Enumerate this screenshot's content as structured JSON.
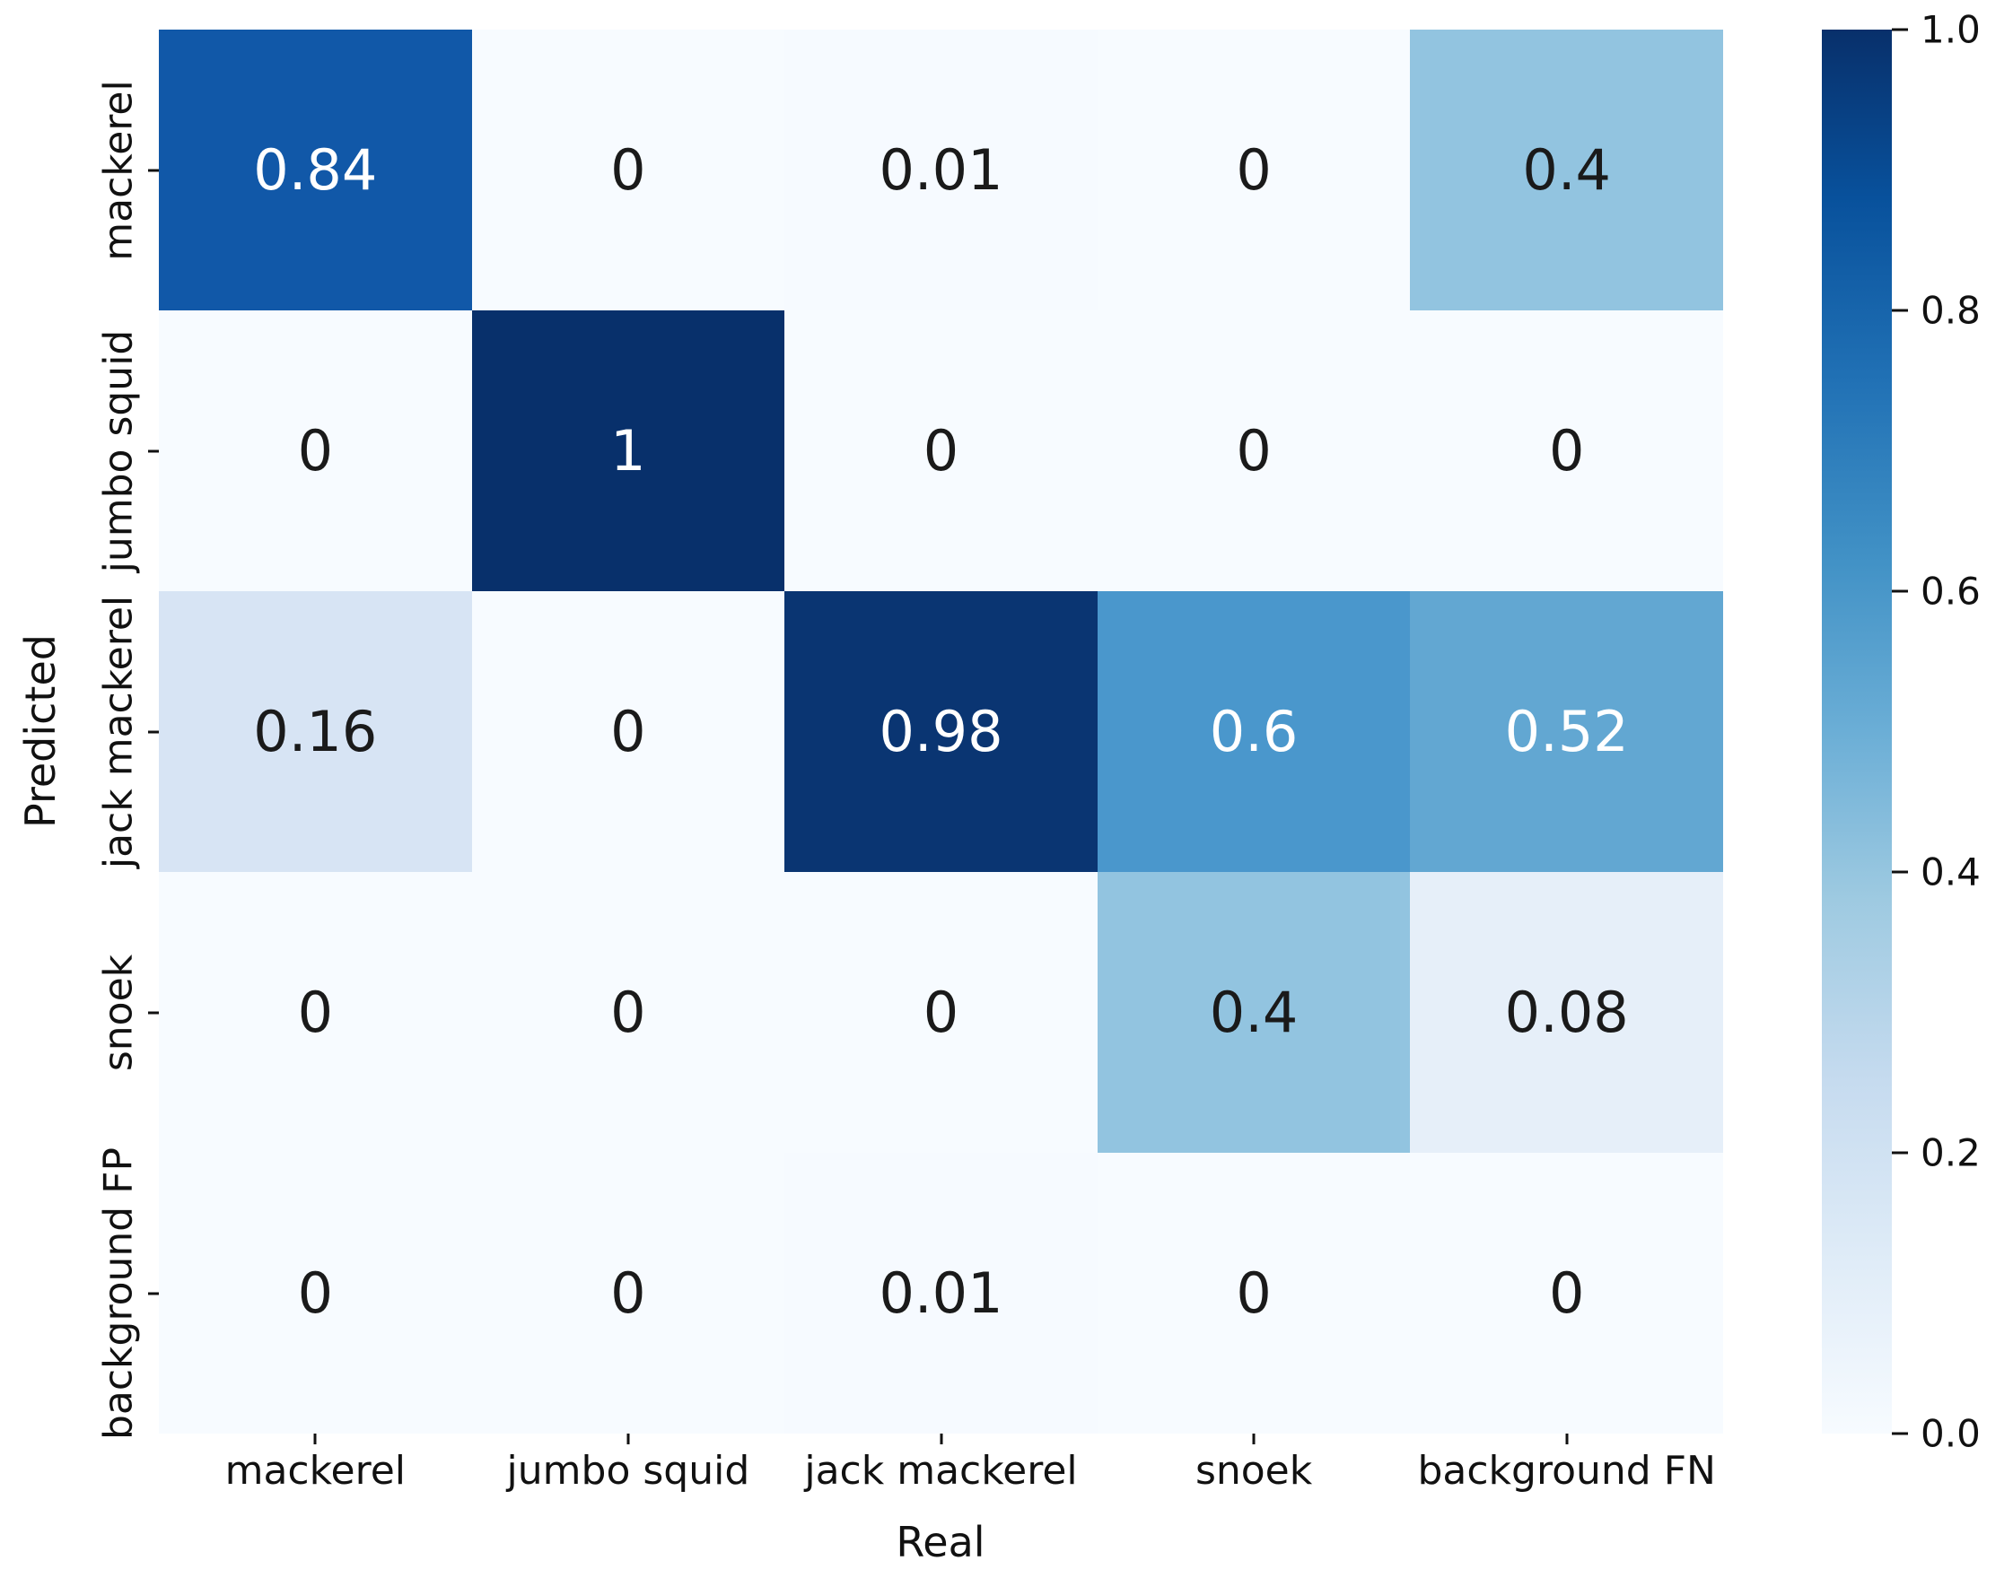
{
  "figure": {
    "background": "#ffffff",
    "text_color": "#111111"
  },
  "chart_data": {
    "type": "heatmap",
    "title": "",
    "xlabel": "Real",
    "ylabel": "Predicted",
    "x_categories": [
      "mackerel",
      "jumbo squid",
      "jack mackerel",
      "snoek",
      "background FN"
    ],
    "y_categories": [
      "mackerel",
      "jumbo squid",
      "jack mackerel",
      "snoek",
      "background FP"
    ],
    "matrix": [
      [
        0.84,
        0,
        0.01,
        0,
        0.4
      ],
      [
        0,
        1,
        0,
        0,
        0
      ],
      [
        0.16,
        0,
        0.98,
        0.6,
        0.52
      ],
      [
        0,
        0,
        0,
        0.4,
        0.08
      ],
      [
        0,
        0,
        0.01,
        0,
        0
      ]
    ],
    "matrix_display": [
      [
        "0.84",
        "0",
        "0.01",
        "0",
        "0.4"
      ],
      [
        "0",
        "1",
        "0",
        "0",
        "0"
      ],
      [
        "0.16",
        "0",
        "0.98",
        "0.6",
        "0.52"
      ],
      [
        "0",
        "0",
        "0",
        "0.4",
        "0.08"
      ],
      [
        "0",
        "0",
        "0.01",
        "0",
        "0"
      ]
    ],
    "cell_colors": [
      [
        "#1158a8",
        "#f7fbff",
        "#f6faff",
        "#f7fbff",
        "#92c4e0"
      ],
      [
        "#f7fbff",
        "#08306b",
        "#f7fbff",
        "#f7fbff",
        "#f7fbff"
      ],
      [
        "#d7e4f4",
        "#f7fbff",
        "#0a3572",
        "#4a97cc",
        "#62a7d2"
      ],
      [
        "#f7fbff",
        "#f7fbff",
        "#f7fbff",
        "#92c4e0",
        "#e6eff9"
      ],
      [
        "#f7fbff",
        "#f7fbff",
        "#f6faff",
        "#f7fbff",
        "#f7fbff"
      ]
    ],
    "annotation_color_light": "#ffffff",
    "annotation_color_dark": "#1a1a1a",
    "annotation_light_threshold": 0.5,
    "value_range": [
      0.0,
      1.0
    ],
    "grid": false,
    "colormap": "Blues",
    "colorbar": {
      "position": "right",
      "tick_labels": [
        "1.0",
        "0.8",
        "0.6",
        "0.4",
        "0.2",
        "0.0"
      ],
      "tick_values": [
        1.0,
        0.8,
        0.6,
        0.4,
        0.2,
        0.0
      ],
      "gradient_stops": [
        {
          "v": 0.0,
          "color": "#f7fbff"
        },
        {
          "v": 0.13,
          "color": "#deebf7"
        },
        {
          "v": 0.25,
          "color": "#c6dbef"
        },
        {
          "v": 0.38,
          "color": "#9ecae1"
        },
        {
          "v": 0.5,
          "color": "#6baed6"
        },
        {
          "v": 0.62,
          "color": "#4292c6"
        },
        {
          "v": 0.75,
          "color": "#2171b5"
        },
        {
          "v": 0.88,
          "color": "#08519c"
        },
        {
          "v": 1.0,
          "color": "#08306b"
        }
      ]
    }
  }
}
